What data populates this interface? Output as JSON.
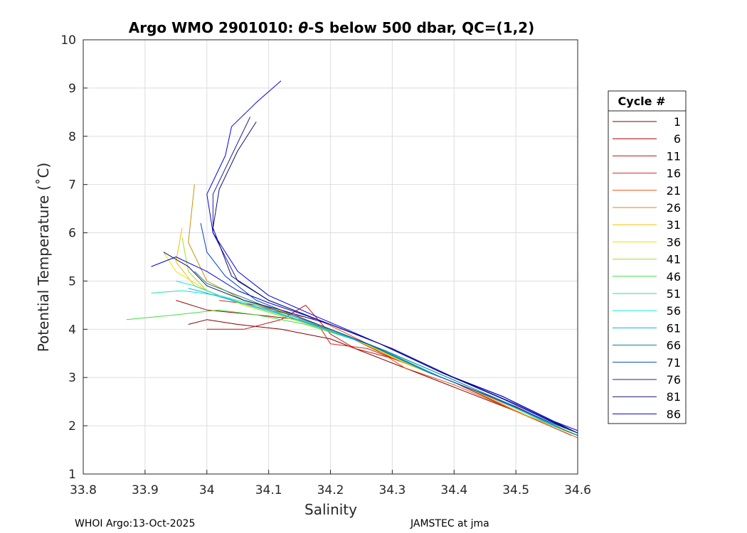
{
  "chart_data": {
    "type": "line",
    "title": "Argo WMO 2901010: θ-S below 500 dbar,  QC=(1,2)",
    "title_parts": [
      "Argo WMO 2901010: ",
      "θ",
      "-S below 500 dbar,  QC=(1,2)"
    ],
    "xlabel": "Salinity",
    "ylabel": "Potential Temperature (˚C)",
    "xlim": [
      33.8,
      34.6
    ],
    "ylim": [
      1,
      10
    ],
    "xticks": [
      "33.8",
      "33.9",
      "34",
      "34.1",
      "34.2",
      "34.3",
      "34.4",
      "34.5",
      "34.6"
    ],
    "yticks": [
      "1",
      "2",
      "3",
      "4",
      "5",
      "6",
      "7",
      "8",
      "9",
      "10"
    ],
    "grid": true,
    "legend": {
      "title": "Cycle #",
      "placement": "right-outside",
      "entries": [
        {
          "label": "1",
          "color": "#800000"
        },
        {
          "label": "6",
          "color": "#a00000"
        },
        {
          "label": "11",
          "color": "#c81010"
        },
        {
          "label": "16",
          "color": "#e02020"
        },
        {
          "label": "21",
          "color": "#f05010"
        },
        {
          "label": "26",
          "color": "#d09000"
        },
        {
          "label": "31",
          "color": "#f0c000"
        },
        {
          "label": "36",
          "color": "#e6e600"
        },
        {
          "label": "41",
          "color": "#a0e020"
        },
        {
          "label": "46",
          "color": "#40e040"
        },
        {
          "label": "51",
          "color": "#20e0b0"
        },
        {
          "label": "56",
          "color": "#10e0e0"
        },
        {
          "label": "61",
          "color": "#00b8e8"
        },
        {
          "label": "66",
          "color": "#008080"
        },
        {
          "label": "71",
          "color": "#0040c0"
        },
        {
          "label": "76",
          "color": "#2020a0"
        },
        {
          "label": "81",
          "color": "#101070"
        },
        {
          "label": "86",
          "color": "#0000e0"
        }
      ]
    },
    "series": [
      {
        "cycle": "1",
        "x": [
          33.97,
          34.0,
          34.05,
          34.12,
          34.2,
          34.3,
          34.4,
          34.5,
          34.58
        ],
        "y": [
          4.1,
          4.2,
          4.1,
          4.0,
          3.8,
          3.3,
          2.8,
          2.3,
          1.9
        ]
      },
      {
        "cycle": "6",
        "x": [
          33.95,
          34.0,
          34.08,
          34.15,
          34.22,
          34.3,
          34.4,
          34.5,
          34.59
        ],
        "y": [
          4.6,
          4.4,
          4.3,
          4.2,
          3.9,
          3.4,
          2.9,
          2.3,
          1.8
        ]
      },
      {
        "cycle": "11",
        "x": [
          34.0,
          34.06,
          34.12,
          34.16,
          34.2,
          34.24,
          34.3,
          34.4,
          34.5,
          34.59
        ],
        "y": [
          4.0,
          4.0,
          4.2,
          4.5,
          3.9,
          3.6,
          3.4,
          2.9,
          2.4,
          1.85
        ]
      },
      {
        "cycle": "16",
        "x": [
          34.02,
          34.08,
          34.14,
          34.18,
          34.2,
          34.26,
          34.32,
          34.42,
          34.52,
          34.6
        ],
        "y": [
          4.6,
          4.5,
          4.3,
          4.1,
          3.7,
          3.6,
          3.3,
          2.8,
          2.25,
          1.8
        ]
      },
      {
        "cycle": "21",
        "x": [
          33.98,
          34.04,
          34.1,
          34.18,
          34.26,
          34.32,
          34.4,
          34.5,
          34.6
        ],
        "y": [
          4.9,
          4.6,
          4.4,
          4.2,
          3.7,
          3.2,
          2.85,
          2.3,
          1.75
        ]
      },
      {
        "cycle": "26",
        "x": [
          33.98,
          33.97,
          34.0,
          34.06,
          34.14,
          34.24,
          34.34,
          34.44,
          34.54,
          34.6
        ],
        "y": [
          7.0,
          5.8,
          5.0,
          4.6,
          4.3,
          3.8,
          3.2,
          2.7,
          2.15,
          1.8
        ]
      },
      {
        "cycle": "31",
        "x": [
          33.96,
          33.95,
          33.98,
          34.04,
          34.12,
          34.22,
          34.32,
          34.42,
          34.52,
          34.6
        ],
        "y": [
          6.1,
          5.4,
          4.9,
          4.6,
          4.3,
          3.9,
          3.3,
          2.8,
          2.2,
          1.8
        ]
      },
      {
        "cycle": "36",
        "x": [
          33.93,
          33.95,
          34.0,
          34.06,
          34.14,
          34.24,
          34.34,
          34.44,
          34.54,
          34.6
        ],
        "y": [
          5.6,
          5.2,
          4.8,
          4.5,
          4.2,
          3.8,
          3.2,
          2.7,
          2.15,
          1.8
        ]
      },
      {
        "cycle": "41",
        "x": [
          33.96,
          33.97,
          34.0,
          34.06,
          34.14,
          34.24,
          34.34,
          34.44,
          34.54,
          34.6
        ],
        "y": [
          5.9,
          5.2,
          4.8,
          4.5,
          4.2,
          3.8,
          3.2,
          2.7,
          2.15,
          1.8
        ]
      },
      {
        "cycle": "46",
        "x": [
          33.87,
          33.95,
          34.02,
          34.08,
          34.16,
          34.26,
          34.36,
          34.46,
          34.56,
          34.6
        ],
        "y": [
          4.2,
          4.3,
          4.4,
          4.3,
          4.1,
          3.7,
          3.1,
          2.6,
          2.0,
          1.8
        ]
      },
      {
        "cycle": "51",
        "x": [
          33.91,
          33.96,
          34.02,
          34.08,
          34.16,
          34.26,
          34.36,
          34.46,
          34.56,
          34.6
        ],
        "y": [
          4.75,
          4.8,
          4.7,
          4.5,
          4.15,
          3.7,
          3.1,
          2.6,
          2.0,
          1.8
        ]
      },
      {
        "cycle": "56",
        "x": [
          33.95,
          33.98,
          34.02,
          34.08,
          34.16,
          34.26,
          34.36,
          34.46,
          34.56,
          34.6
        ],
        "y": [
          5.0,
          4.9,
          4.7,
          4.45,
          4.15,
          3.7,
          3.1,
          2.6,
          2.0,
          1.8
        ]
      },
      {
        "cycle": "61",
        "x": [
          33.97,
          34.0,
          34.04,
          34.1,
          34.18,
          34.28,
          34.38,
          34.48,
          34.58,
          34.6
        ],
        "y": [
          4.85,
          4.75,
          4.6,
          4.4,
          4.05,
          3.6,
          3.0,
          2.5,
          1.9,
          1.8
        ]
      },
      {
        "cycle": "66",
        "x": [
          33.98,
          34.0,
          34.05,
          34.11,
          34.19,
          34.29,
          34.39,
          34.49,
          34.58,
          34.6
        ],
        "y": [
          5.2,
          4.95,
          4.7,
          4.4,
          4.05,
          3.55,
          3.0,
          2.45,
          1.9,
          1.8
        ]
      },
      {
        "cycle": "71",
        "x": [
          33.99,
          34.0,
          34.03,
          34.08,
          34.16,
          34.26,
          34.36,
          34.46,
          34.56,
          34.6
        ],
        "y": [
          6.2,
          5.6,
          5.1,
          4.6,
          4.2,
          3.7,
          3.1,
          2.6,
          2.05,
          1.85
        ]
      },
      {
        "cycle": "76",
        "x": [
          34.07,
          34.04,
          34.01,
          34.01,
          34.05,
          34.1,
          34.18,
          34.28,
          34.38,
          34.48,
          34.56,
          34.6
        ],
        "y": [
          8.4,
          7.6,
          6.8,
          6.0,
          5.0,
          4.6,
          4.2,
          3.7,
          3.1,
          2.6,
          2.1,
          1.85
        ]
      },
      {
        "cycle": "81",
        "x": [
          34.08,
          34.05,
          34.02,
          34.01,
          34.04,
          34.1,
          34.18,
          34.28,
          34.38,
          34.48,
          34.56,
          34.6
        ],
        "y": [
          8.3,
          7.7,
          6.9,
          6.1,
          5.1,
          4.6,
          4.2,
          3.7,
          3.1,
          2.6,
          2.1,
          1.85
        ]
      },
      {
        "cycle": "86",
        "x": [
          34.12,
          34.08,
          34.04,
          34.03,
          34.0,
          34.01,
          34.05,
          34.1,
          34.18,
          34.28,
          34.38,
          34.48,
          34.56,
          34.6
        ],
        "y": [
          9.15,
          8.7,
          8.2,
          7.6,
          6.8,
          6.0,
          5.2,
          4.7,
          4.25,
          3.7,
          3.1,
          2.6,
          2.1,
          1.9
        ]
      },
      {
        "cycle": "86",
        "x": [
          33.91,
          33.95,
          34.0,
          34.05,
          34.1,
          34.18,
          34.28,
          34.38,
          34.48,
          34.58
        ],
        "y": [
          5.3,
          5.5,
          5.2,
          4.8,
          4.55,
          4.2,
          3.7,
          3.1,
          2.55,
          1.95
        ]
      },
      {
        "cycle": "81",
        "x": [
          33.93,
          33.97,
          34.0,
          34.06,
          34.12,
          34.2,
          34.3,
          34.4,
          34.5,
          34.59
        ],
        "y": [
          5.6,
          5.3,
          4.9,
          4.6,
          4.4,
          4.1,
          3.6,
          3.0,
          2.45,
          1.9
        ]
      }
    ]
  },
  "footer": {
    "left": "WHOI Argo:13-Oct-2025",
    "right": "JAMSTEC at jma"
  }
}
